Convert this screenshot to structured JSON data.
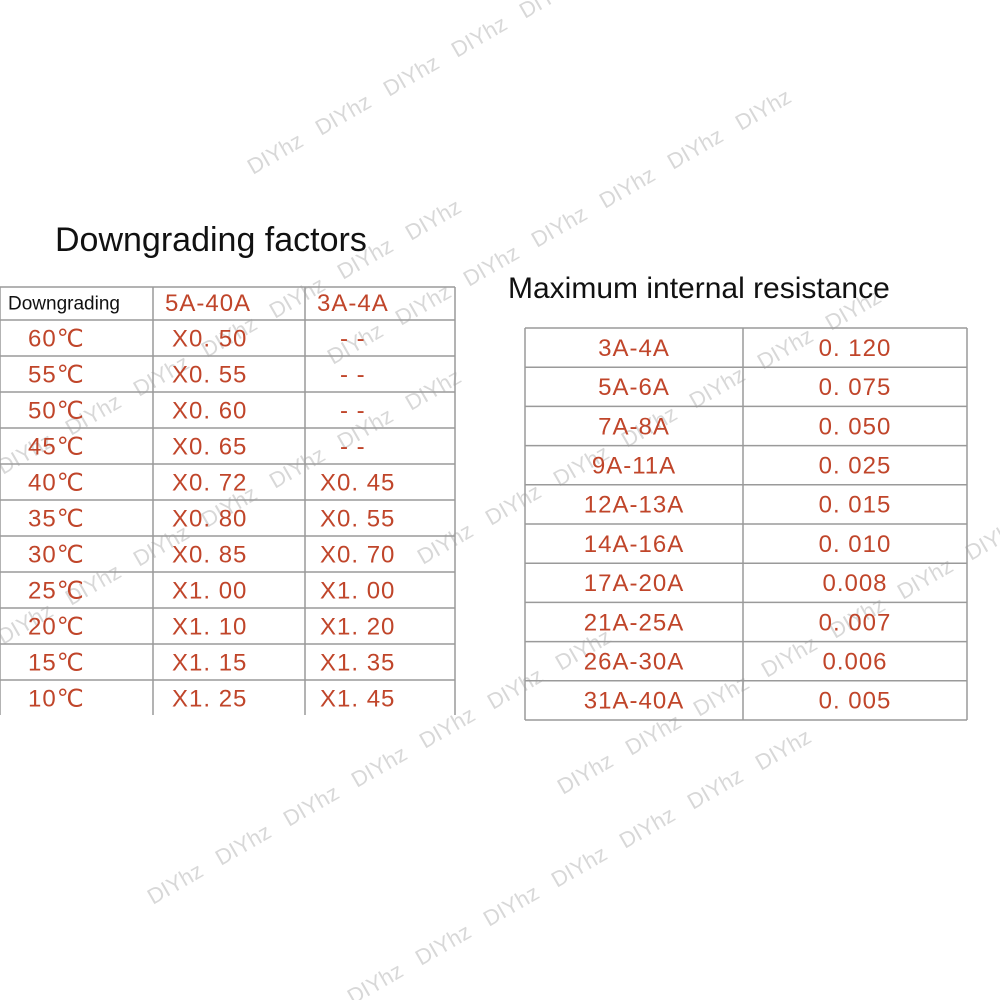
{
  "watermark": "DIYhz",
  "left": {
    "title": "Downgrading factors",
    "header": [
      "Downgrading",
      "5A-40A",
      "3A-4A"
    ],
    "rows": [
      [
        "60℃",
        "X0. 50",
        "- -"
      ],
      [
        "55℃",
        "X0. 55",
        "- -"
      ],
      [
        "50℃",
        "X0. 60",
        "- -"
      ],
      [
        "45℃",
        "X0. 65",
        "- -"
      ],
      [
        "40℃",
        "X0. 72",
        "X0. 45"
      ],
      [
        "35℃",
        "X0. 80",
        "X0. 55"
      ],
      [
        "30℃",
        "X0. 85",
        "X0. 70"
      ],
      [
        "25℃",
        "X1. 00",
        "X1. 00"
      ],
      [
        "20℃",
        "X1. 10",
        "X1. 20"
      ],
      [
        "15℃",
        "X1. 15",
        "X1. 35"
      ],
      [
        "10℃",
        "X1. 25",
        "X1. 45"
      ]
    ]
  },
  "right": {
    "title": "Maximum internal resistance",
    "rows": [
      [
        "3A-4A",
        "0. 120"
      ],
      [
        "5A-6A",
        "0. 075"
      ],
      [
        "7A-8A",
        "0. 050"
      ],
      [
        "9A-11A",
        "0. 025"
      ],
      [
        "12A-13A",
        "0. 015"
      ],
      [
        "14A-16A",
        "0. 010"
      ],
      [
        "17A-20A",
        "0.008"
      ],
      [
        "21A-25A",
        "0. 007"
      ],
      [
        "26A-30A",
        "0.006"
      ],
      [
        "31A-40A",
        "0. 005"
      ]
    ]
  }
}
